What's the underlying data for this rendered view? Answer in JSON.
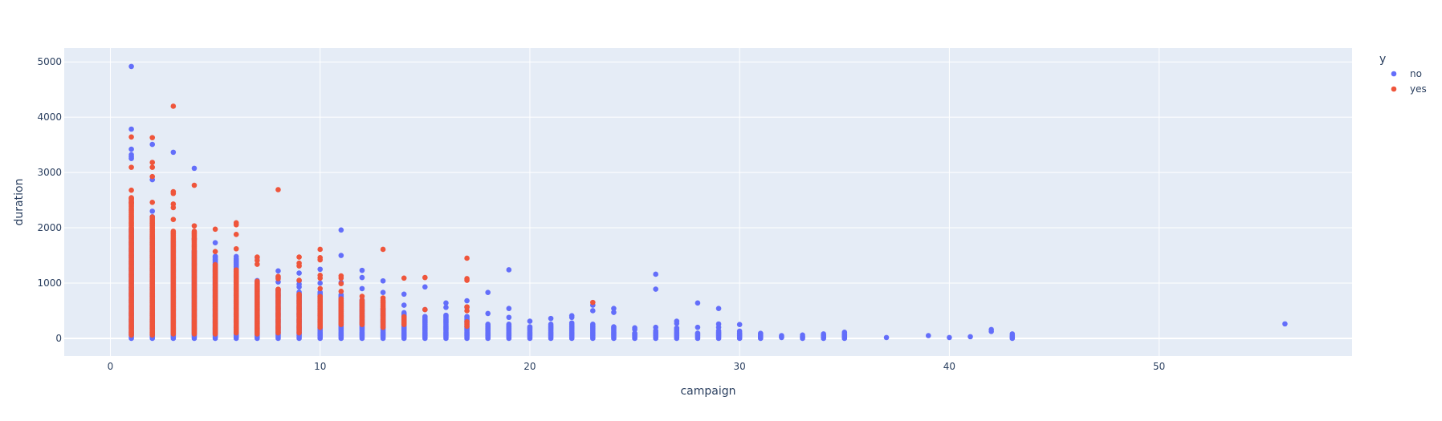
{
  "chart_data": {
    "type": "scatter",
    "title": "",
    "xlabel": "campaign",
    "ylabel": "duration",
    "xlim": [
      -2.2,
      59.2
    ],
    "ylim": [
      -320,
      5250
    ],
    "xticks": [
      0,
      10,
      20,
      30,
      40,
      50
    ],
    "yticks": [
      0,
      1000,
      2000,
      3000,
      4000,
      5000
    ],
    "grid": true,
    "legend": {
      "title": "y",
      "position": "top-right"
    },
    "colors": {
      "no": "#636efa",
      "yes": "#ef553b",
      "plot_bg": "#e5ecf6",
      "grid": "#ffffff",
      "text": "#2a3f5f"
    },
    "series": [
      {
        "name": "no",
        "color": "#636efa",
        "columns": [
          [
            1,
            0,
            2000
          ],
          [
            2,
            0,
            1900
          ],
          [
            3,
            0,
            1750
          ],
          [
            4,
            0,
            1600
          ],
          [
            5,
            0,
            1500
          ],
          [
            6,
            0,
            1450
          ],
          [
            7,
            0,
            1050
          ],
          [
            8,
            0,
            900
          ],
          [
            9,
            0,
            850
          ],
          [
            10,
            0,
            850
          ],
          [
            11,
            0,
            800
          ],
          [
            12,
            0,
            700
          ],
          [
            13,
            0,
            550
          ],
          [
            14,
            0,
            470
          ],
          [
            15,
            0,
            400
          ],
          [
            16,
            0,
            420
          ],
          [
            17,
            0,
            400
          ],
          [
            18,
            0,
            260
          ],
          [
            19,
            0,
            260
          ],
          [
            20,
            0,
            220
          ],
          [
            21,
            0,
            260
          ],
          [
            22,
            0,
            280
          ],
          [
            23,
            0,
            260
          ],
          [
            24,
            0,
            220
          ],
          [
            25,
            0,
            100
          ],
          [
            26,
            0,
            150
          ],
          [
            27,
            0,
            200
          ],
          [
            28,
            0,
            100
          ],
          [
            29,
            0,
            150
          ],
          [
            30,
            0,
            110
          ],
          [
            31,
            0,
            60
          ],
          [
            33,
            0,
            40
          ],
          [
            34,
            0,
            50
          ],
          [
            35,
            0,
            70
          ],
          [
            43,
            0,
            40
          ]
        ],
        "points": [
          [
            1,
            4918
          ],
          [
            1,
            3785
          ],
          [
            1,
            3422
          ],
          [
            1,
            3322
          ],
          [
            1,
            3284
          ],
          [
            1,
            3253
          ],
          [
            1,
            2462
          ],
          [
            2,
            3509
          ],
          [
            2,
            2870
          ],
          [
            2,
            2300
          ],
          [
            2,
            2200
          ],
          [
            3,
            3366
          ],
          [
            3,
            1750
          ],
          [
            4,
            3076
          ],
          [
            4,
            1800
          ],
          [
            5,
            1730
          ],
          [
            5,
            1480
          ],
          [
            5,
            1420
          ],
          [
            6,
            1480
          ],
          [
            6,
            1400
          ],
          [
            6,
            1300
          ],
          [
            7,
            1460
          ],
          [
            8,
            1220
          ],
          [
            8,
            1100
          ],
          [
            8,
            1020
          ],
          [
            9,
            1180
          ],
          [
            9,
            1040
          ],
          [
            9,
            980
          ],
          [
            9,
            930
          ],
          [
            10,
            1250
          ],
          [
            10,
            1000
          ],
          [
            11,
            1960
          ],
          [
            11,
            1500
          ],
          [
            11,
            1010
          ],
          [
            12,
            1230
          ],
          [
            12,
            1100
          ],
          [
            12,
            900
          ],
          [
            13,
            1040
          ],
          [
            13,
            830
          ],
          [
            14,
            800
          ],
          [
            14,
            600
          ],
          [
            15,
            930
          ],
          [
            15,
            520
          ],
          [
            16,
            640
          ],
          [
            16,
            560
          ],
          [
            17,
            680
          ],
          [
            17,
            560
          ],
          [
            18,
            830
          ],
          [
            18,
            450
          ],
          [
            19,
            1240
          ],
          [
            19,
            540
          ],
          [
            19,
            380
          ],
          [
            20,
            310
          ],
          [
            21,
            360
          ],
          [
            22,
            410
          ],
          [
            22,
            380
          ],
          [
            23,
            600
          ],
          [
            23,
            500
          ],
          [
            24,
            540
          ],
          [
            24,
            470
          ],
          [
            25,
            190
          ],
          [
            25,
            160
          ],
          [
            26,
            1160
          ],
          [
            26,
            890
          ],
          [
            26,
            200
          ],
          [
            27,
            310
          ],
          [
            27,
            270
          ],
          [
            28,
            640
          ],
          [
            28,
            200
          ],
          [
            29,
            540
          ],
          [
            29,
            260
          ],
          [
            29,
            200
          ],
          [
            30,
            250
          ],
          [
            30,
            130
          ],
          [
            31,
            90
          ],
          [
            31,
            70
          ],
          [
            31,
            30
          ],
          [
            32,
            50
          ],
          [
            32,
            30
          ],
          [
            32,
            15
          ],
          [
            33,
            60
          ],
          [
            33,
            30
          ],
          [
            34,
            80
          ],
          [
            34,
            60
          ],
          [
            34,
            20
          ],
          [
            35,
            110
          ],
          [
            35,
            80
          ],
          [
            35,
            30
          ],
          [
            37,
            15
          ],
          [
            39,
            50
          ],
          [
            40,
            15
          ],
          [
            41,
            30
          ],
          [
            42,
            160
          ],
          [
            42,
            125
          ],
          [
            43,
            80
          ],
          [
            43,
            50
          ],
          [
            43,
            20
          ],
          [
            56,
            262
          ]
        ]
      },
      {
        "name": "yes",
        "color": "#ef553b",
        "columns": [
          [
            1,
            60,
            2550
          ],
          [
            2,
            60,
            2200
          ],
          [
            3,
            80,
            1950
          ],
          [
            4,
            80,
            1950
          ],
          [
            5,
            80,
            1350
          ],
          [
            6,
            100,
            1250
          ],
          [
            7,
            80,
            1050
          ],
          [
            8,
            100,
            900
          ],
          [
            9,
            100,
            800
          ],
          [
            10,
            200,
            780
          ],
          [
            11,
            250,
            730
          ],
          [
            12,
            250,
            710
          ],
          [
            13,
            200,
            700
          ],
          [
            14,
            250,
            400
          ]
        ],
        "points": [
          [
            1,
            3643
          ],
          [
            1,
            3094
          ],
          [
            1,
            2680
          ],
          [
            1,
            2528
          ],
          [
            1,
            2453
          ],
          [
            2,
            3631
          ],
          [
            2,
            3183
          ],
          [
            2,
            3094
          ],
          [
            2,
            2926
          ],
          [
            2,
            2461
          ],
          [
            3,
            4199
          ],
          [
            3,
            2653
          ],
          [
            3,
            2621
          ],
          [
            3,
            2429
          ],
          [
            3,
            2365
          ],
          [
            3,
            2150
          ],
          [
            4,
            2769
          ],
          [
            4,
            2035
          ],
          [
            5,
            1975
          ],
          [
            5,
            1570
          ],
          [
            6,
            2090
          ],
          [
            6,
            2055
          ],
          [
            6,
            1880
          ],
          [
            6,
            1620
          ],
          [
            7,
            1470
          ],
          [
            7,
            1410
          ],
          [
            7,
            1340
          ],
          [
            8,
            2690
          ],
          [
            8,
            1120
          ],
          [
            8,
            1080
          ],
          [
            8,
            880
          ],
          [
            9,
            1470
          ],
          [
            9,
            1360
          ],
          [
            9,
            1310
          ],
          [
            9,
            1050
          ],
          [
            10,
            1610
          ],
          [
            10,
            1460
          ],
          [
            10,
            1420
          ],
          [
            10,
            1140
          ],
          [
            10,
            1090
          ],
          [
            10,
            900
          ],
          [
            11,
            1130
          ],
          [
            11,
            1090
          ],
          [
            11,
            990
          ],
          [
            11,
            850
          ],
          [
            12,
            760
          ],
          [
            13,
            1610
          ],
          [
            13,
            730
          ],
          [
            14,
            1090
          ],
          [
            15,
            1100
          ],
          [
            15,
            520
          ],
          [
            17,
            1450
          ],
          [
            17,
            1080
          ],
          [
            17,
            1050
          ],
          [
            17,
            570
          ],
          [
            17,
            500
          ],
          [
            17,
            300
          ],
          [
            17,
            260
          ],
          [
            17,
            220
          ],
          [
            23,
            650
          ]
        ]
      }
    ]
  }
}
